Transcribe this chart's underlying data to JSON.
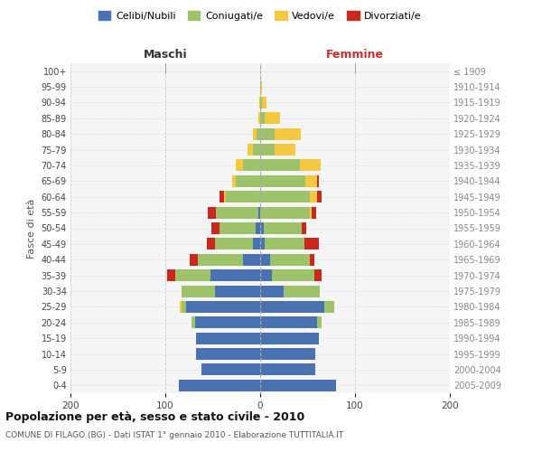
{
  "age_groups": [
    "0-4",
    "5-9",
    "10-14",
    "15-19",
    "20-24",
    "25-29",
    "30-34",
    "35-39",
    "40-44",
    "45-49",
    "50-54",
    "55-59",
    "60-64",
    "65-69",
    "70-74",
    "75-79",
    "80-84",
    "85-89",
    "90-94",
    "95-99",
    "100+"
  ],
  "birth_years": [
    "2005-2009",
    "2000-2004",
    "1995-1999",
    "1990-1994",
    "1985-1989",
    "1980-1984",
    "1975-1979",
    "1970-1974",
    "1965-1969",
    "1960-1964",
    "1955-1959",
    "1950-1954",
    "1945-1949",
    "1940-1944",
    "1935-1939",
    "1930-1934",
    "1925-1929",
    "1920-1924",
    "1915-1919",
    "1910-1914",
    "≤ 1909"
  ],
  "males": {
    "celibe": [
      86,
      62,
      68,
      68,
      69,
      78,
      48,
      52,
      18,
      8,
      5,
      2,
      0,
      0,
      0,
      0,
      0,
      0,
      0,
      0,
      0
    ],
    "coniugato": [
      0,
      0,
      0,
      0,
      3,
      5,
      35,
      38,
      48,
      40,
      38,
      45,
      36,
      26,
      18,
      8,
      4,
      0,
      0,
      0,
      0
    ],
    "vedovo": [
      0,
      0,
      0,
      0,
      0,
      2,
      0,
      0,
      0,
      0,
      0,
      0,
      2,
      4,
      8,
      5,
      4,
      2,
      1,
      0,
      0
    ],
    "divorziato": [
      0,
      0,
      0,
      0,
      0,
      0,
      0,
      8,
      8,
      8,
      8,
      8,
      5,
      0,
      0,
      0,
      0,
      0,
      0,
      0,
      0
    ]
  },
  "females": {
    "nubile": [
      80,
      58,
      58,
      62,
      60,
      68,
      25,
      12,
      10,
      5,
      4,
      0,
      0,
      0,
      0,
      0,
      0,
      0,
      0,
      0,
      0
    ],
    "coniugata": [
      0,
      0,
      0,
      0,
      5,
      10,
      38,
      45,
      42,
      42,
      40,
      52,
      52,
      48,
      42,
      15,
      15,
      5,
      2,
      0,
      0
    ],
    "vedova": [
      0,
      0,
      0,
      0,
      0,
      0,
      0,
      0,
      0,
      0,
      0,
      2,
      8,
      12,
      22,
      22,
      28,
      16,
      5,
      2,
      0
    ],
    "divorziata": [
      0,
      0,
      0,
      0,
      0,
      0,
      0,
      8,
      5,
      15,
      5,
      5,
      5,
      2,
      0,
      0,
      0,
      0,
      0,
      0,
      0
    ]
  },
  "colors": {
    "celibe": "#4B72B0",
    "coniugato": "#9DC26A",
    "vedovo": "#F5C842",
    "divorziato": "#C8281E"
  },
  "xlim": [
    -200,
    200
  ],
  "xticks": [
    -200,
    -100,
    0,
    100,
    200
  ],
  "xticklabels": [
    "200",
    "100",
    "0",
    "100",
    "200"
  ],
  "title": "Popolazione per età, sesso e stato civile - 2010",
  "subtitle": "COMUNE DI FILAGO (BG) - Dati ISTAT 1° gennaio 2010 - Elaborazione TUTTITALIA.IT",
  "ylabel_left": "Fasce di età",
  "header_left": "Maschi",
  "header_right": "Femmine",
  "bg_color": "#ffffff",
  "plot_bg_color": "#f5f5f5",
  "grid_color": "#cccccc",
  "legend_labels": [
    "Celibi/Nubili",
    "Coniugati/e",
    "Vedovi/e",
    "Divorziati/e"
  ]
}
